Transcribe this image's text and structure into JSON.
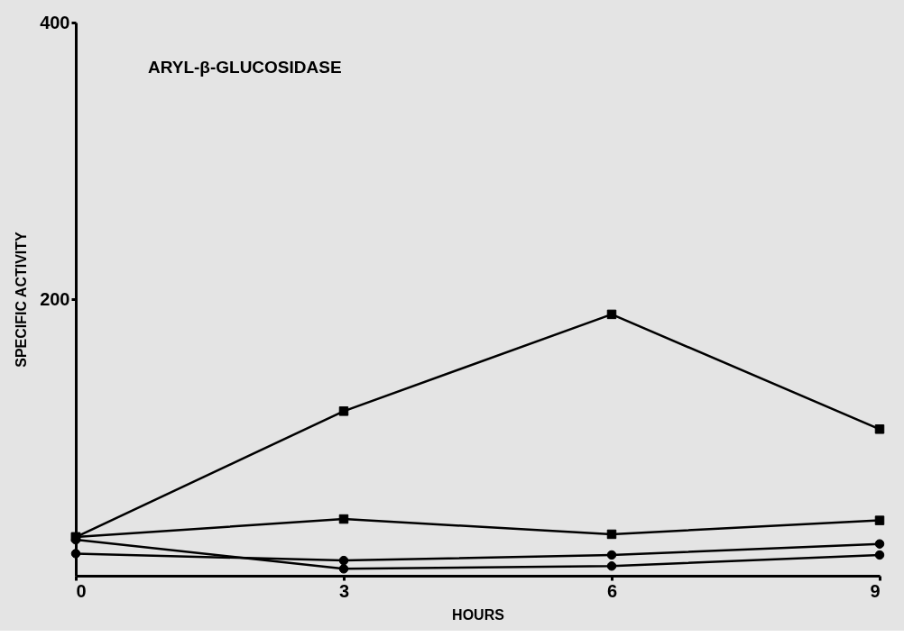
{
  "chart_data": {
    "type": "line",
    "title": "ARYL-β-GLUCOSIDASE",
    "xlabel": "HOURS",
    "ylabel": "SPECIFIC ACTIVITY",
    "x": [
      0,
      3,
      6,
      9
    ],
    "xlim": [
      0,
      9
    ],
    "xticks": [
      0,
      3,
      6,
      9
    ],
    "ylim": [
      0,
      400
    ],
    "yticks": [
      200,
      400
    ],
    "grid": false,
    "legend": false,
    "line_style": "solid",
    "series": [
      {
        "color": "#000000",
        "marker": "square",
        "values": [
          28,
          119,
          189,
          106
        ]
      },
      {
        "color": "#000000",
        "marker": "square",
        "values": [
          28,
          41,
          30,
          40
        ]
      },
      {
        "color": "#000000",
        "marker": "circle",
        "values": [
          16,
          11,
          15,
          23
        ]
      },
      {
        "color": "#000000",
        "marker": "circle",
        "values": [
          26,
          5,
          7,
          15
        ]
      }
    ]
  }
}
